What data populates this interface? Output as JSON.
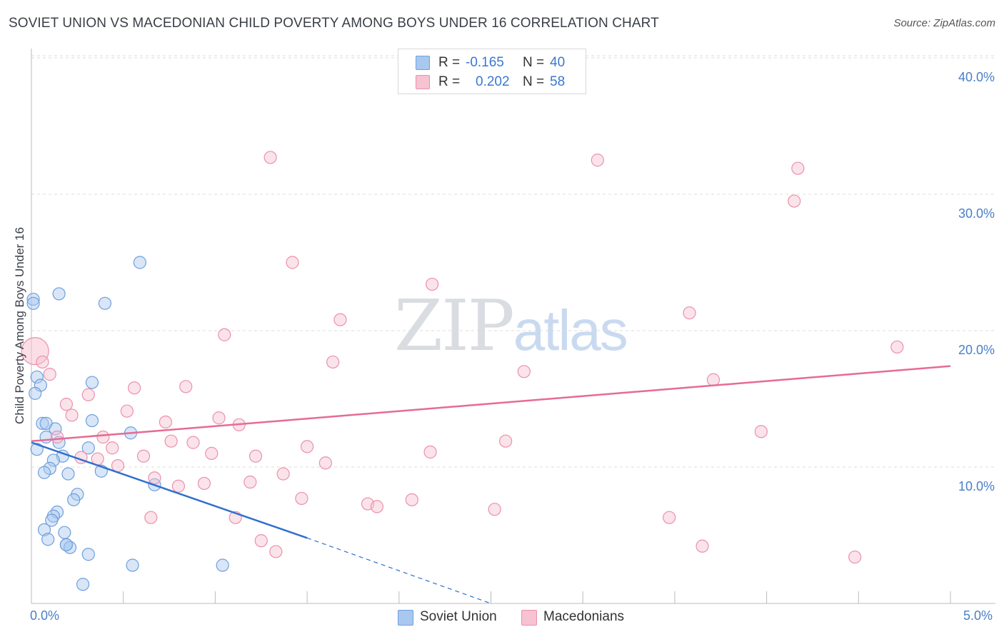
{
  "title": "SOVIET UNION VS MACEDONIAN CHILD POVERTY AMONG BOYS UNDER 16 CORRELATION CHART",
  "source": "Source: ZipAtlas.com",
  "watermark": {
    "zip": "ZIP",
    "atlas": "atlas"
  },
  "stats": [
    {
      "r_label": "R =",
      "r_value": "-0.165",
      "n_label": "N =",
      "n_value": "40",
      "color": "#a9c8ef"
    },
    {
      "r_label": "R =",
      "r_value": "0.202",
      "n_label": "N =",
      "n_value": "58",
      "color": "#f5b8c9"
    }
  ],
  "legend": [
    {
      "label": "Soviet Union",
      "color": "#a9c8ef"
    },
    {
      "label": "Macedonians",
      "color": "#f5b8c9"
    }
  ],
  "colors": {
    "soviet_fill": "#a9c8ef",
    "soviet_stroke": "#6f9fdc",
    "soviet_line": "#2f6fcf",
    "maced_fill": "#f7c2d1",
    "maced_stroke": "#eb90ad",
    "maced_line": "#e66b95",
    "tick_text": "#4a7fc8",
    "grid": "#dddddd"
  },
  "chart_data": {
    "type": "scatter",
    "title": "SOVIET UNION VS MACEDONIAN CHILD POVERTY AMONG BOYS UNDER 16 CORRELATION CHART",
    "xlabel": "",
    "ylabel": "Child Poverty Among Boys Under 16",
    "xlim": [
      0,
      5
    ],
    "ylim": [
      0,
      41
    ],
    "x_tick_labels": [
      {
        "value": 0,
        "label": "0.0%"
      },
      {
        "value": 5,
        "label": "5.0%"
      }
    ],
    "y_tick_labels": [
      {
        "value": 10,
        "label": "10.0%"
      },
      {
        "value": 20,
        "label": "20.0%"
      },
      {
        "value": 30,
        "label": "30.0%"
      },
      {
        "value": 40,
        "label": "40.0%"
      }
    ],
    "grid": true,
    "legend_position": "bottom-center",
    "series": [
      {
        "name": "Soviet Union",
        "points": [
          [
            0.01,
            22.3
          ],
          [
            0.01,
            22.0
          ],
          [
            0.15,
            22.7
          ],
          [
            0.59,
            25.0
          ],
          [
            0.4,
            22.0
          ],
          [
            0.03,
            16.6
          ],
          [
            0.05,
            16.0
          ],
          [
            0.02,
            15.4
          ],
          [
            0.33,
            16.2
          ],
          [
            0.33,
            13.4
          ],
          [
            0.06,
            13.2
          ],
          [
            0.08,
            13.2
          ],
          [
            0.13,
            12.8
          ],
          [
            0.54,
            12.5
          ],
          [
            0.08,
            12.2
          ],
          [
            0.15,
            11.8
          ],
          [
            0.03,
            11.3
          ],
          [
            0.31,
            11.4
          ],
          [
            0.17,
            10.8
          ],
          [
            0.12,
            10.5
          ],
          [
            0.1,
            9.9
          ],
          [
            0.07,
            9.6
          ],
          [
            0.2,
            9.5
          ],
          [
            0.38,
            9.7
          ],
          [
            0.67,
            8.7
          ],
          [
            0.25,
            8.0
          ],
          [
            0.23,
            7.6
          ],
          [
            0.14,
            6.7
          ],
          [
            0.12,
            6.4
          ],
          [
            0.11,
            6.1
          ],
          [
            0.18,
            5.2
          ],
          [
            0.07,
            5.4
          ],
          [
            0.09,
            4.7
          ],
          [
            0.19,
            4.3
          ],
          [
            0.21,
            4.1
          ],
          [
            0.31,
            3.6
          ],
          [
            0.55,
            2.8
          ],
          [
            1.04,
            2.8
          ],
          [
            0.28,
            1.4
          ],
          [
            0.19,
            4.3
          ]
        ],
        "trend": {
          "x": [
            0.0,
            1.5
          ],
          "y": [
            11.8,
            4.8
          ],
          "dashed_extension": {
            "x": [
              1.5,
              2.5
            ],
            "y": [
              4.8,
              0.0
            ]
          }
        }
      },
      {
        "name": "Macedonians",
        "points": [
          [
            0.02,
            18.5
          ],
          [
            0.06,
            17.7
          ],
          [
            0.1,
            16.8
          ],
          [
            1.3,
            32.7
          ],
          [
            3.08,
            32.5
          ],
          [
            4.17,
            31.9
          ],
          [
            4.15,
            29.5
          ],
          [
            1.42,
            25.0
          ],
          [
            2.18,
            23.4
          ],
          [
            3.58,
            21.3
          ],
          [
            1.68,
            20.8
          ],
          [
            1.05,
            19.7
          ],
          [
            1.64,
            17.7
          ],
          [
            2.68,
            17.0
          ],
          [
            4.71,
            18.8
          ],
          [
            3.71,
            16.4
          ],
          [
            0.56,
            15.8
          ],
          [
            0.84,
            15.9
          ],
          [
            0.31,
            15.3
          ],
          [
            0.19,
            14.6
          ],
          [
            0.52,
            14.1
          ],
          [
            0.22,
            13.8
          ],
          [
            1.02,
            13.6
          ],
          [
            1.13,
            13.1
          ],
          [
            0.73,
            13.3
          ],
          [
            0.39,
            12.2
          ],
          [
            0.14,
            12.2
          ],
          [
            0.44,
            11.4
          ],
          [
            0.76,
            11.9
          ],
          [
            0.88,
            11.8
          ],
          [
            1.5,
            11.5
          ],
          [
            2.58,
            11.9
          ],
          [
            2.17,
            11.1
          ],
          [
            3.97,
            12.6
          ],
          [
            0.98,
            11.0
          ],
          [
            1.22,
            10.8
          ],
          [
            0.61,
            10.8
          ],
          [
            0.27,
            10.7
          ],
          [
            0.36,
            10.6
          ],
          [
            0.47,
            10.1
          ],
          [
            1.6,
            10.3
          ],
          [
            1.37,
            9.5
          ],
          [
            0.67,
            9.2
          ],
          [
            0.94,
            8.8
          ],
          [
            1.19,
            8.9
          ],
          [
            0.8,
            8.6
          ],
          [
            1.47,
            7.7
          ],
          [
            2.07,
            7.6
          ],
          [
            1.83,
            7.3
          ],
          [
            1.88,
            7.1
          ],
          [
            2.52,
            6.9
          ],
          [
            0.65,
            6.3
          ],
          [
            1.11,
            6.3
          ],
          [
            3.47,
            6.3
          ],
          [
            1.25,
            4.6
          ],
          [
            1.33,
            3.8
          ],
          [
            3.65,
            4.2
          ],
          [
            4.48,
            3.4
          ]
        ],
        "trend": {
          "x": [
            0.0,
            5.0
          ],
          "y": [
            11.9,
            17.4
          ]
        }
      }
    ]
  }
}
